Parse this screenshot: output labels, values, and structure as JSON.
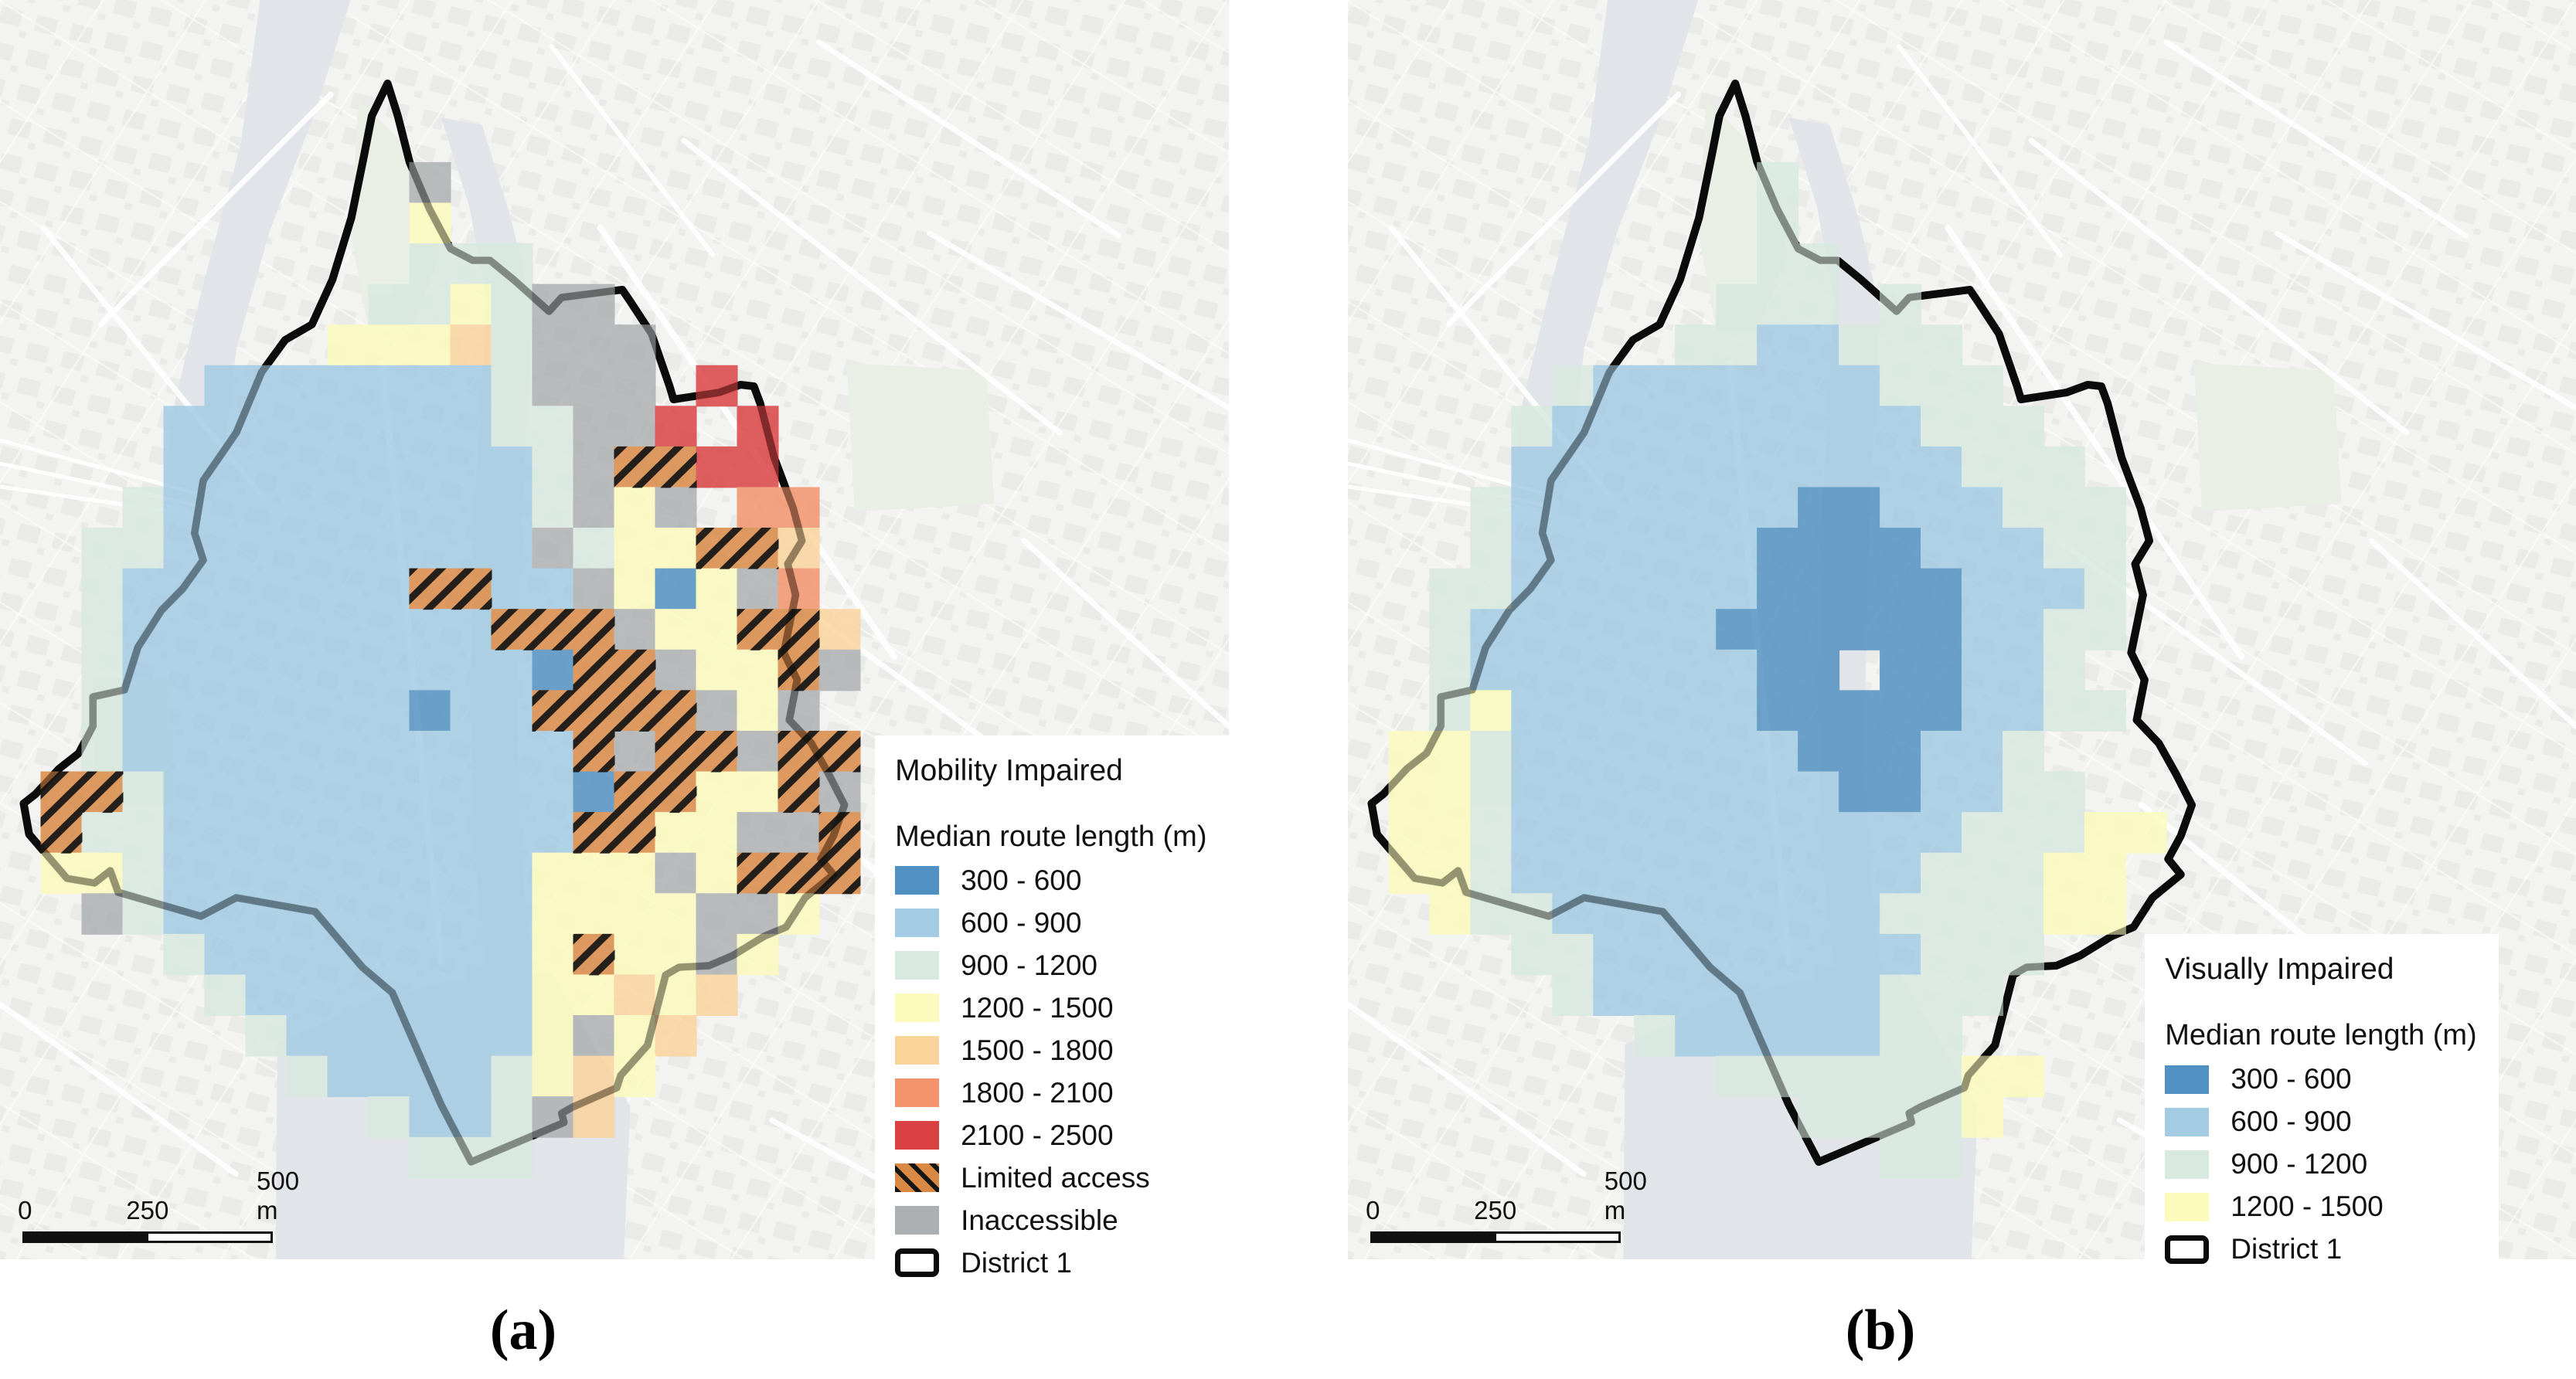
{
  "page": {
    "background": "#ffffff"
  },
  "panels": [
    {
      "id": "a",
      "caption": "(a)",
      "legend": {
        "title": "Mobility Impaired",
        "subtitle": "Median route length (m)",
        "items": [
          {
            "label": "300 - 600",
            "swatch": "#5190c2",
            "type": "fill"
          },
          {
            "label": "600 - 900",
            "swatch": "#a3cbe3",
            "type": "fill"
          },
          {
            "label": "900 - 1200",
            "swatch": "#d8e9e0",
            "type": "fill"
          },
          {
            "label": "1200 - 1500",
            "swatch": "#fcfbbd",
            "type": "fill"
          },
          {
            "label": "1500 - 1800",
            "swatch": "#fbd49c",
            "type": "fill"
          },
          {
            "label": "1800 - 2100",
            "swatch": "#f2936b",
            "type": "fill"
          },
          {
            "label": "2100 - 2500",
            "swatch": "#da4143",
            "type": "fill"
          },
          {
            "label": "Limited access",
            "swatch": "#d98944",
            "type": "hatch"
          },
          {
            "label": "Inaccessible",
            "swatch": "#adb0b2",
            "type": "fill"
          },
          {
            "label": "District 1",
            "swatch": "#0b0b0b",
            "type": "outline"
          }
        ]
      },
      "scalebar": {
        "labels": [
          "0",
          "250",
          "500 m"
        ]
      },
      "grid": [
        "..............................",
        "..............................",
        "..............................",
        "..............................",
        "..........X...................",
        "..........4...................",
        "..........333.................",
        ".........3343XX...............",
        "........44453XXX..............",
        ".....22222223XXX.7............",
        "....2222222233XX7.7...........",
        "....2222222223XLL77...........",
        "...32222222223X4X.66..........",
        "..33222222222X344LL5..........",
        "..32222222LL22X414X6..........",
        "..3222222222LLLX44LL5.........",
        "..322222222221LLX44LX.........",
        "..32222222122LLLLX4X..........",
        "..322222222222LXLLXLL.........",
        ".LL322222222221LL44LX.........",
        ".L332222222222LL44XXL.........",
        ".443222222222444X4LLL.........",
        "..X32222222224444XX4..........",
        "....3222222224L44X4...........",
        ".....3222222244545............",
        "......32222224X45.............",
        ".......322223454..............",
        ".........3223X5...............",
        "..........333.................",
        "..............................",
        ".............................."
      ]
    },
    {
      "id": "b",
      "caption": "(b)",
      "legend": {
        "title": "Visually Impaired",
        "subtitle": "Median route length (m)",
        "items": [
          {
            "label": "300 - 600",
            "swatch": "#5190c2",
            "type": "fill"
          },
          {
            "label": "600 - 900",
            "swatch": "#a3cbe3",
            "type": "fill"
          },
          {
            "label": "900 - 1200",
            "swatch": "#d8e9e0",
            "type": "fill"
          },
          {
            "label": "1200 - 1500",
            "swatch": "#fcfbbd",
            "type": "fill"
          },
          {
            "label": "District 1",
            "swatch": "#0b0b0b",
            "type": "outline"
          }
        ]
      },
      "scalebar": {
        "labels": [
          "0",
          "250",
          "500 m"
        ]
      },
      "grid": [
        "..............................",
        "..............................",
        "..............................",
        "..............................",
        "..........3...................",
        "..........3...................",
        "..........33..................",
        ".........333.3................",
        "........3322333...............",
        ".....32222222333..............",
        "....3222222222333.............",
        "....22222222222333............",
        "...3222222211222333...........",
        "...3222222111122233...........",
        "..33222222111112223...........",
        "..32222221111112233...........",
        "..3222222211.11223............",
        "..34222222111112233...........",
        ".4432222222111223.............",
        ".44322222222112233............",
        ".4432222222222233344..........",
        ".443222222222233344...........",
        "..43322222222333344...........",
        "....3322222222333.............",
        ".....32222222333..............",
        ".......32222233...............",
        ".........33333344.............",
        "...........33334..............",
        ".............33...............",
        "..............................",
        ".............................."
      ]
    }
  ],
  "map": {
    "grid_size": {
      "cols": 30,
      "rows": 31
    },
    "cell_opacity": 0.84,
    "cell_colors": {
      "1": "#5190c2",
      "2": "#a3cbe3",
      "3": "#d8e9e0",
      "4": "#fcfbbd",
      "5": "#fbd49c",
      "6": "#f2936b",
      "7": "#da4143",
      "X": "#adb0b2",
      "L": "#d98944"
    },
    "hatch_line_color": "#151515",
    "boundary_color": "#0b0b0b",
    "land_color": "#f3f3f1",
    "block_color": "#e8e8e6",
    "street_color": "#ffffff",
    "water_color": "#e1e4e8",
    "park_color": "#e9efe5",
    "boundary": [
      [
        492,
        108
      ],
      [
        505,
        150
      ],
      [
        520,
        210
      ],
      [
        545,
        270
      ],
      [
        572,
        322
      ],
      [
        600,
        337
      ],
      [
        622,
        337
      ],
      [
        640,
        352
      ],
      [
        652,
        362
      ],
      [
        697,
        403
      ],
      [
        713,
        385
      ],
      [
        790,
        375
      ],
      [
        800,
        390
      ],
      [
        827,
        432
      ],
      [
        850,
        500
      ],
      [
        855,
        517
      ],
      [
        913,
        508
      ],
      [
        940,
        498
      ],
      [
        957,
        500
      ],
      [
        965,
        522
      ],
      [
        983,
        593
      ],
      [
        1007,
        658
      ],
      [
        1018,
        700
      ],
      [
        1000,
        730
      ],
      [
        1010,
        770
      ],
      [
        995,
        845
      ],
      [
        1012,
        880
      ],
      [
        1002,
        932
      ],
      [
        1030,
        962
      ],
      [
        1052,
        1002
      ],
      [
        1072,
        1042
      ],
      [
        1058,
        1082
      ],
      [
        1042,
        1112
      ],
      [
        1058,
        1132
      ],
      [
        1022,
        1162
      ],
      [
        998,
        1200
      ],
      [
        970,
        1212
      ],
      [
        930,
        1237
      ],
      [
        900,
        1250
      ],
      [
        862,
        1252
      ],
      [
        845,
        1262
      ],
      [
        822,
        1353
      ],
      [
        788,
        1392
      ],
      [
        783,
        1408
      ],
      [
        727,
        1433
      ],
      [
        713,
        1441
      ],
      [
        716,
        1453
      ],
      [
        598,
        1504
      ],
      [
        560,
        1430
      ],
      [
        498,
        1285
      ],
      [
        460,
        1252
      ],
      [
        400,
        1180
      ],
      [
        300,
        1162
      ],
      [
        255,
        1186
      ],
      [
        150,
        1155
      ],
      [
        140,
        1127
      ],
      [
        120,
        1143
      ],
      [
        85,
        1137
      ],
      [
        37,
        1080
      ],
      [
        30,
        1040
      ],
      [
        45,
        1028
      ],
      [
        75,
        995
      ],
      [
        100,
        975
      ],
      [
        118,
        940
      ],
      [
        118,
        902
      ],
      [
        158,
        893
      ],
      [
        175,
        838
      ],
      [
        205,
        790
      ],
      [
        232,
        762
      ],
      [
        258,
        725
      ],
      [
        247,
        690
      ],
      [
        258,
        622
      ],
      [
        300,
        560
      ],
      [
        332,
        482
      ],
      [
        362,
        440
      ],
      [
        396,
        420
      ],
      [
        422,
        362
      ],
      [
        446,
        282
      ],
      [
        462,
        202
      ],
      [
        472,
        150
      ]
    ],
    "water": {
      "river_nw": [
        [
          330,
          0
        ],
        [
          445,
          0
        ],
        [
          400,
          145
        ],
        [
          342,
          300
        ],
        [
          300,
          452
        ],
        [
          286,
          575
        ],
        [
          272,
          648
        ],
        [
          205,
          652
        ],
        [
          222,
          520
        ],
        [
          258,
          368
        ],
        [
          306,
          185
        ]
      ],
      "limmat": [
        [
          560,
          152
        ],
        [
          596,
          268
        ],
        [
          618,
          390
        ],
        [
          610,
          520
        ],
        [
          600,
          700
        ],
        [
          597,
          900
        ],
        [
          602,
          1100
        ],
        [
          620,
          1268
        ],
        [
          678,
          1268
        ],
        [
          660,
          1100
        ],
        [
          657,
          900
        ],
        [
          661,
          700
        ],
        [
          670,
          520
        ],
        [
          676,
          400
        ],
        [
          648,
          280
        ],
        [
          612,
          162
        ]
      ],
      "lake": [
        [
          352,
          1352
        ],
        [
          470,
          1295
        ],
        [
          565,
          1272
        ],
        [
          700,
          1258
        ],
        [
          800,
          1432
        ],
        [
          792,
          1630
        ],
        [
          350,
          1630
        ]
      ]
    },
    "parks": [
      [
        [
          455,
          128
        ],
        [
          540,
          215
        ],
        [
          558,
          330
        ],
        [
          520,
          430
        ],
        [
          468,
          428
        ],
        [
          445,
          300
        ]
      ],
      [
        [
          1075,
          470
        ],
        [
          1252,
          480
        ],
        [
          1262,
          652
        ],
        [
          1085,
          662
        ]
      ],
      [
        [
          118,
          878
        ],
        [
          212,
          878
        ],
        [
          216,
          1042
        ],
        [
          120,
          1042
        ]
      ]
    ],
    "roads": [
      [
        485,
        470,
        560,
        1245,
        9
      ],
      [
        762,
        295,
        1135,
        850,
        8
      ],
      [
        868,
        182,
        1345,
        560,
        7
      ],
      [
        1008,
        1042,
        1430,
        1390,
        8
      ],
      [
        1180,
        302,
        1560,
        528,
        7
      ],
      [
        1040,
        55,
        1420,
        305,
        7
      ],
      [
        55,
        295,
        335,
        645,
        7
      ],
      [
        128,
        420,
        420,
        122,
        7
      ],
      [
        905,
        702,
        1292,
        988,
        7
      ],
      [
        700,
        60,
        905,
        330,
        6
      ],
      [
        1300,
        700,
        1560,
        940,
        7
      ],
      [
        0,
        1300,
        300,
        1520,
        7
      ],
      [
        980,
        1450,
        1300,
        1630,
        7
      ],
      [
        0,
        570,
        255,
        640,
        5
      ],
      [
        0,
        600,
        255,
        655,
        5
      ],
      [
        0,
        630,
        258,
        668,
        5
      ]
    ]
  }
}
